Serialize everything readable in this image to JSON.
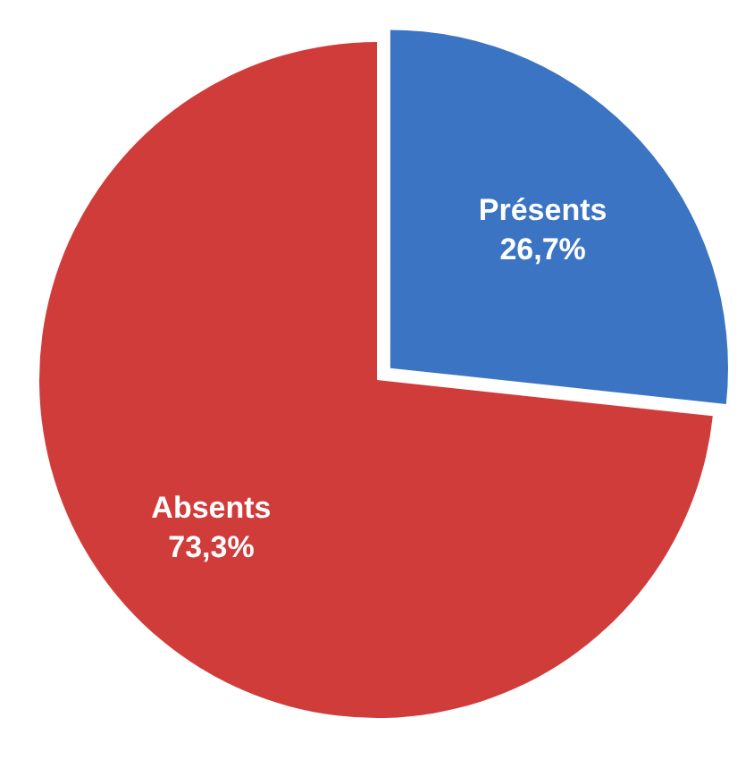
{
  "chart_data": {
    "type": "pie",
    "categories": [
      "Présents",
      "Absents"
    ],
    "values": [
      26.7,
      73.3
    ],
    "colors": [
      "#3b74c2",
      "#d03c3a"
    ],
    "value_labels": [
      "26,7%",
      "73,3%"
    ]
  }
}
